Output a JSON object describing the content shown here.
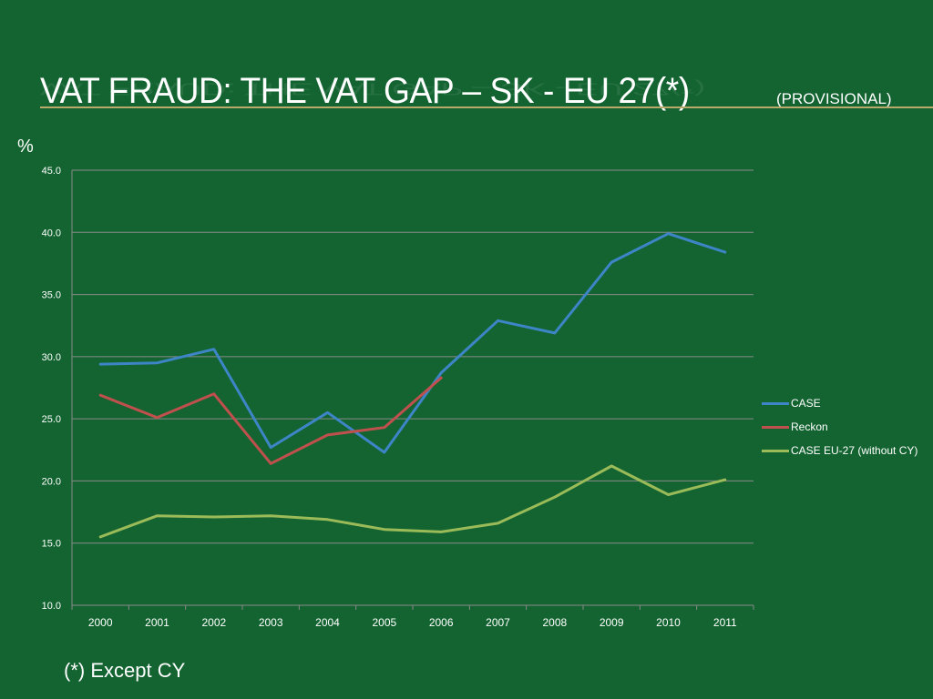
{
  "slide": {
    "title": "VAT FRAUD: THE VAT GAP – SK - EU 27(*)",
    "title_suffix": "(PROVISIONAL)",
    "unit": "%",
    "footnote": "(*) Except CY",
    "rule_color": "#b9a96a",
    "background_color": "#136431"
  },
  "chart_data": {
    "type": "line",
    "categories": [
      "2000",
      "2001",
      "2002",
      "2003",
      "2004",
      "2005",
      "2006",
      "2007",
      "2008",
      "2009",
      "2010",
      "2011"
    ],
    "ylim": [
      10,
      45
    ],
    "yticks": [
      "10.0",
      "15.0",
      "20.0",
      "25.0",
      "30.0",
      "35.0",
      "40.0",
      "45.0"
    ],
    "ylabel": "%",
    "grid": true,
    "legend_position": "right",
    "series": [
      {
        "name": "CASE",
        "color": "#3d85c6",
        "values": [
          29.4,
          29.5,
          30.6,
          22.7,
          25.5,
          22.3,
          28.7,
          32.9,
          31.9,
          37.6,
          39.9,
          38.4
        ]
      },
      {
        "name": "Reckon",
        "color": "#c0504d",
        "values": [
          26.9,
          25.1,
          27.0,
          21.4,
          23.7,
          24.3,
          28.3,
          null,
          null,
          null,
          null,
          null
        ]
      },
      {
        "name": "CASE EU-27 (without CY)",
        "color": "#9bbb59",
        "values": [
          15.5,
          17.2,
          17.1,
          17.2,
          16.9,
          16.1,
          15.9,
          16.6,
          18.7,
          21.2,
          18.9,
          20.1
        ]
      }
    ]
  }
}
